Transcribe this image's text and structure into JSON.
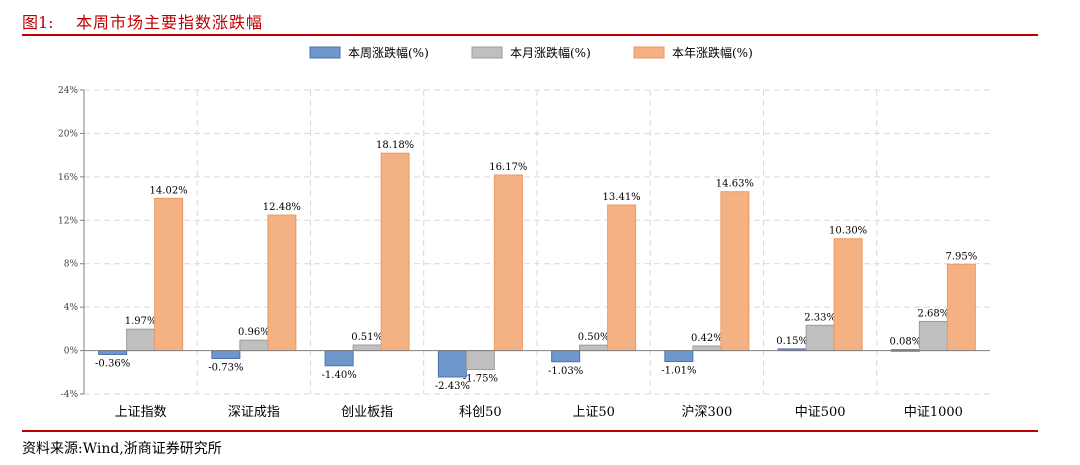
{
  "header": {
    "figure_label": "图1:",
    "title": "本周市场主要指数涨跌幅"
  },
  "footer": {
    "source": "资料来源:Wind,浙商证券研究所"
  },
  "chart_data": {
    "type": "bar",
    "categories": [
      "上证指数",
      "深证成指",
      "创业板指",
      "科创50",
      "上证50",
      "沪深300",
      "中证500",
      "中证1000"
    ],
    "series": [
      {
        "name": "本周涨跌幅(%)",
        "color": "#6f97cc",
        "values": [
          -0.36,
          -0.73,
          -1.4,
          -2.43,
          -1.03,
          -1.01,
          0.15,
          0.08
        ],
        "labels": [
          "-0.36%",
          "-0.73%",
          "-1.40%",
          "-2.43%",
          "-1.03%",
          "-1.01%",
          "0.15%",
          "0.08%"
        ]
      },
      {
        "name": "本月涨跌幅(%)",
        "color": "#bfbfbf",
        "values": [
          1.97,
          0.96,
          0.51,
          -1.75,
          0.5,
          0.42,
          2.33,
          2.68
        ],
        "labels": [
          "1.97%",
          "0.96%",
          "0.51%",
          "-1.75%",
          "0.50%",
          "0.42%",
          "2.33%",
          "2.68%"
        ]
      },
      {
        "name": "本年涨跌幅(%)",
        "color": "#f4b183",
        "values": [
          14.02,
          12.48,
          18.18,
          16.17,
          13.41,
          14.63,
          10.3,
          7.95
        ],
        "labels": [
          "14.02%",
          "12.48%",
          "18.18%",
          "16.17%",
          "13.41%",
          "14.63%",
          "10.30%",
          "7.95%"
        ]
      }
    ],
    "ylim": [
      -4,
      24
    ],
    "yticks": [
      -4,
      0,
      4,
      8,
      12,
      16,
      20,
      24
    ],
    "ytick_labels": [
      "-4%",
      "0%",
      "4%",
      "8%",
      "12%",
      "16%",
      "20%",
      "24%"
    ],
    "xlabel": "",
    "ylabel": "",
    "grid": true,
    "legend_position": "top-center"
  }
}
